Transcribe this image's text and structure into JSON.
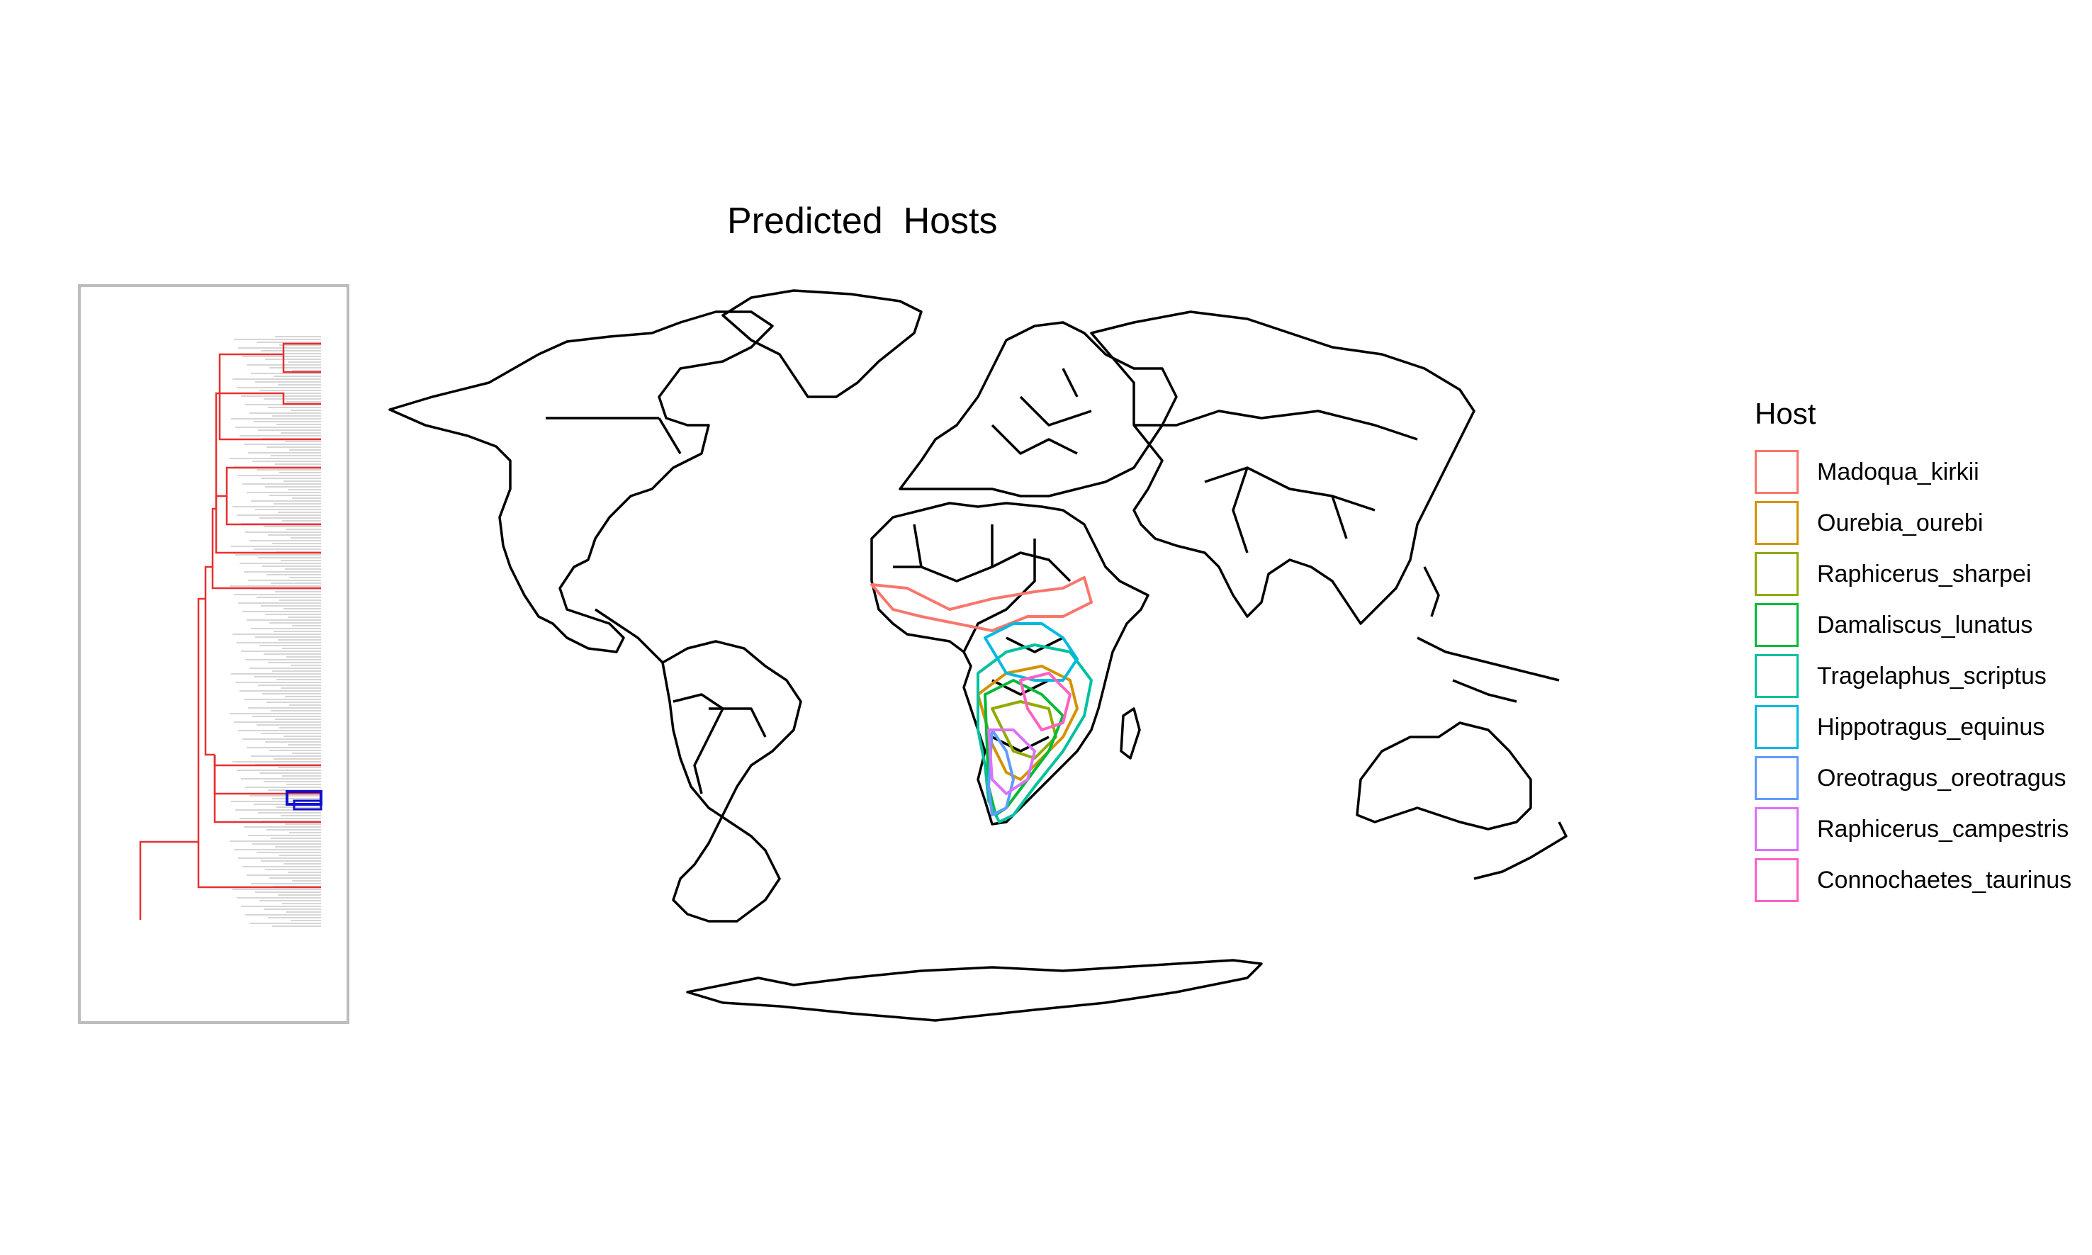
{
  "title": "Predicted  Hosts",
  "legend": {
    "title": "Host",
    "items": [
      {
        "label": "Madoqua_kirkii",
        "color": "#F8766D",
        "icon": "square-outline-icon"
      },
      {
        "label": "Ourebia_ourebi",
        "color": "#D39200",
        "icon": "square-outline-icon"
      },
      {
        "label": "Raphicerus_sharpei",
        "color": "#93AA00",
        "icon": "square-outline-icon"
      },
      {
        "label": "Damaliscus_lunatus",
        "color": "#00BA38",
        "icon": "square-outline-icon"
      },
      {
        "label": "Tragelaphus_scriptus",
        "color": "#00C19F",
        "icon": "square-outline-icon"
      },
      {
        "label": "Hippotragus_equinus",
        "color": "#00B9E3",
        "icon": "square-outline-icon"
      },
      {
        "label": "Oreotragus_oreotragus",
        "color": "#619CFF",
        "icon": "square-outline-icon"
      },
      {
        "label": "Raphicerus_campestris",
        "color": "#DB72FB",
        "icon": "square-outline-icon"
      },
      {
        "label": "Connochaetes_taurinus",
        "color": "#FF61C3",
        "icon": "square-outline-icon"
      }
    ]
  },
  "colors": {
    "tree_branch": "#e83030",
    "tree_highlight": "#1010d0",
    "tree_background": "#c8c8c8",
    "inset_border": "#bdbdbd",
    "country_outline": "#000000"
  },
  "map": {
    "projection": "world-oval",
    "focus_region": "sub-saharan-africa"
  }
}
